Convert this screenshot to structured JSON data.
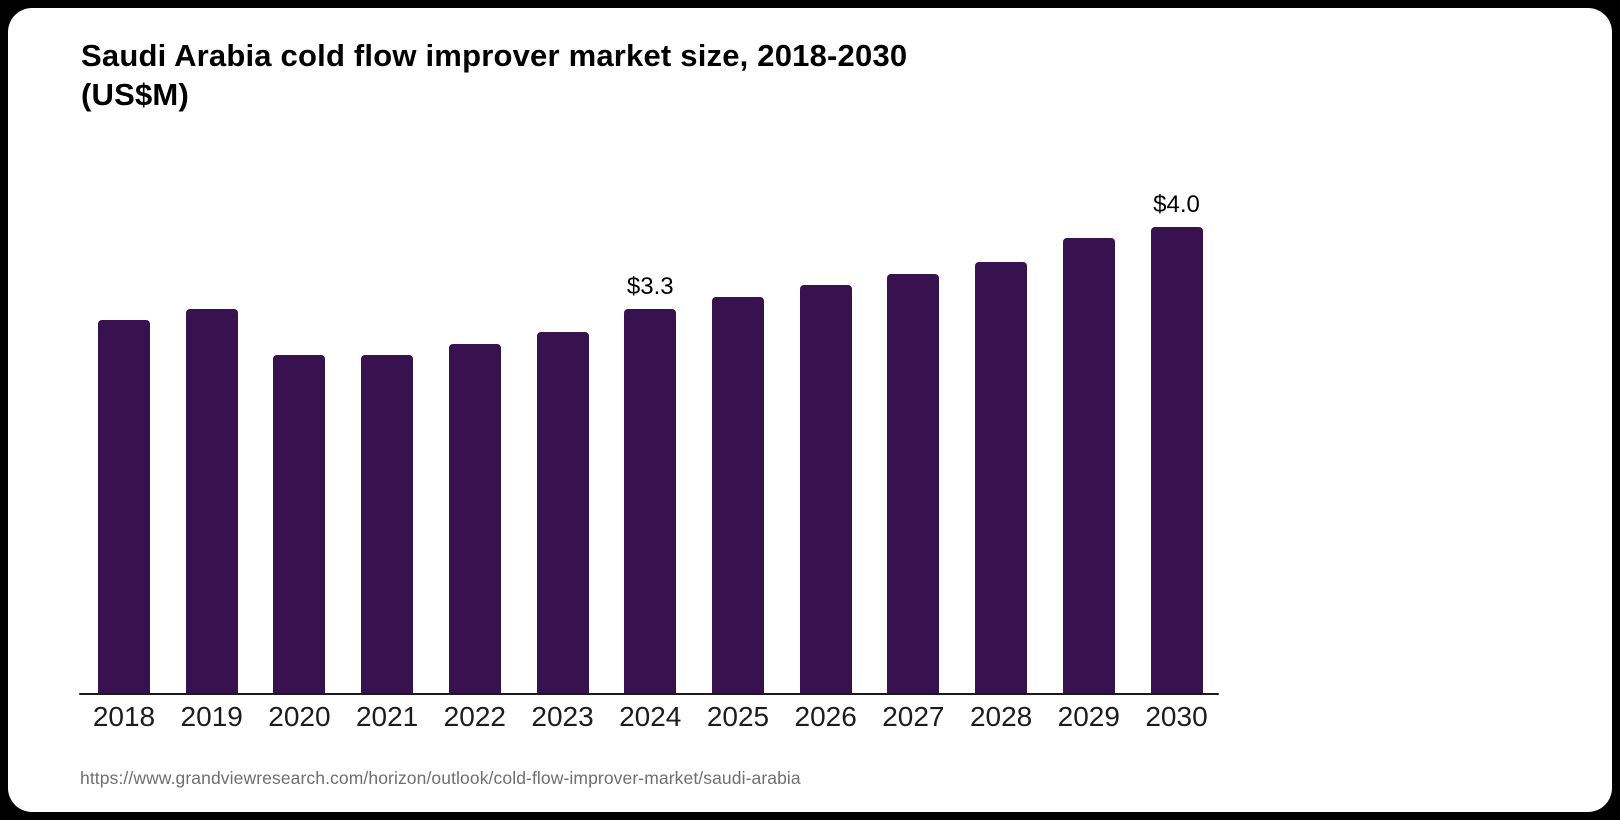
{
  "page": {
    "background_color": "#000000",
    "card_color": "#FFFFFF"
  },
  "header": {
    "title_line1": "Saudi Arabia cold flow improver market size, 2018-2030",
    "title_line2": "(US$M)"
  },
  "chart_data": {
    "type": "bar",
    "title": "Saudi Arabia cold flow improver market size, 2018-2030 (US$M)",
    "unit": "US$M",
    "categories": [
      "2018",
      "2019",
      "2020",
      "2021",
      "2022",
      "2023",
      "2024",
      "2025",
      "2026",
      "2027",
      "2028",
      "2029",
      "2030"
    ],
    "values": [
      3.2,
      3.3,
      2.9,
      2.9,
      3.0,
      3.1,
      3.3,
      3.4,
      3.5,
      3.6,
      3.7,
      3.9,
      4.0
    ],
    "data_labels": {
      "2024": "$3.3",
      "2030": "$4.0"
    },
    "xlabel": "",
    "ylabel": "",
    "ylim": [
      0,
      4.3
    ],
    "gridlines": false,
    "legend": "none",
    "bar_color": "#38124E",
    "axis_color": "#1A1A1A",
    "tick_label_color": "#1C1C1C",
    "value_label_color": "#000000"
  },
  "footer": {
    "source_url": "https://www.grandviewresearch.com/horizon/outlook/cold-flow-improver-market/saudi-arabia"
  }
}
